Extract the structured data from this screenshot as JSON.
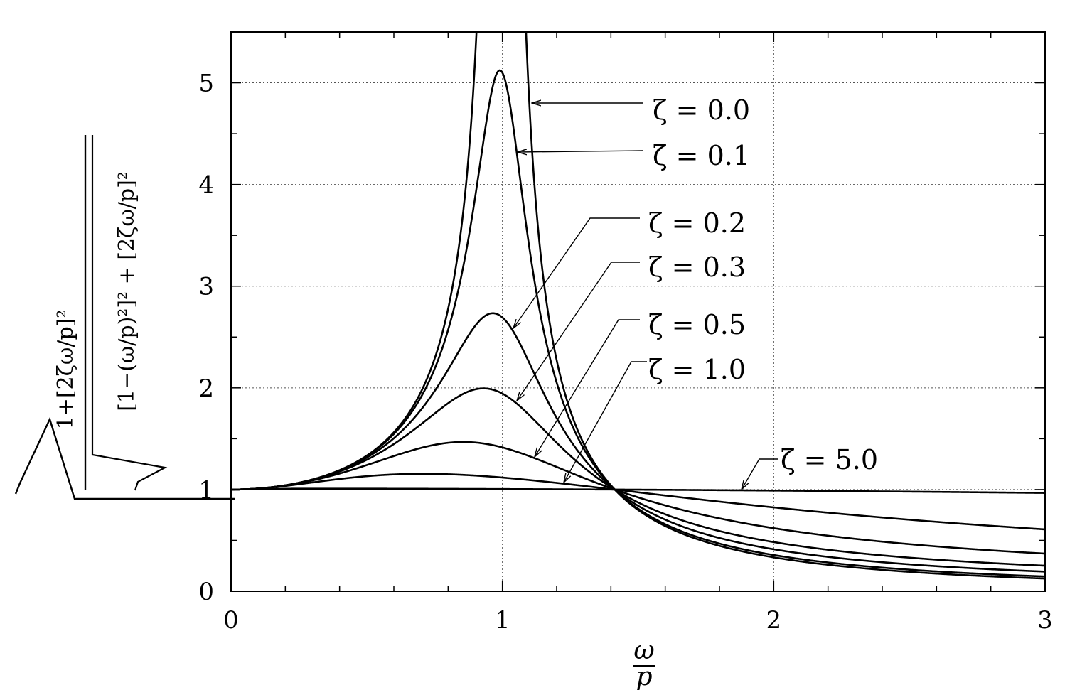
{
  "chart_data": {
    "type": "line",
    "title": "",
    "xlabel": "ω/p",
    "ylabel": "sqrt( (1 + [2ζ ω/p]^2) / ([1 − (ω/p)^2]^2 + [2ζ ω/p]^2) )",
    "xlabel_parts": {
      "numerator": "ω",
      "denominator": "p"
    },
    "xlim": [
      0,
      3
    ],
    "ylim": [
      0,
      5.5
    ],
    "x_ticks": [
      0,
      1,
      2,
      3
    ],
    "y_ticks": [
      0,
      1,
      2,
      3,
      4,
      5
    ],
    "x_tick_labels": [
      "0",
      "1",
      "2",
      "3"
    ],
    "y_tick_labels": [
      "0",
      "1",
      "2",
      "3",
      "4",
      "5"
    ],
    "grid": true,
    "x": [
      0,
      0.25,
      0.5,
      0.75,
      0.9,
      1.0,
      1.25,
      1.414,
      1.75,
      2.0,
      2.5,
      3.0
    ],
    "series": [
      {
        "name": "ζ = 0.0",
        "zeta": 0.0,
        "values": [
          1.0,
          1.067,
          1.333,
          2.286,
          5.263,
          null,
          1.778,
          1.0,
          0.485,
          0.333,
          0.19,
          0.125
        ]
      },
      {
        "name": "ζ = 0.1",
        "zeta": 0.1,
        "values": [
          1.0,
          1.066,
          1.317,
          2.125,
          3.77,
          5.099,
          1.766,
          1.0,
          0.496,
          0.355,
          0.225,
          0.172
        ]
      },
      {
        "name": "ζ = 0.2",
        "zeta": 0.2,
        "values": [
          1.0,
          1.063,
          1.277,
          1.819,
          2.405,
          2.693,
          1.671,
          1.0,
          0.524,
          0.408,
          0.296,
          0.249
        ]
      },
      {
        "name": "ζ = 0.3",
        "zeta": 0.3,
        "values": [
          1.0,
          1.059,
          1.228,
          1.553,
          1.824,
          1.944,
          1.567,
          1.0,
          0.562,
          0.463,
          0.368,
          0.328
        ]
      },
      {
        "name": "ζ = 0.5",
        "zeta": 0.5,
        "values": [
          1.0,
          1.049,
          1.151,
          1.28,
          1.36,
          1.414,
          1.333,
          1.0,
          0.638,
          0.555,
          0.478,
          0.445
        ]
      },
      {
        "name": "ζ = 1.0",
        "zeta": 1.0,
        "values": [
          1.0,
          1.028,
          1.063,
          1.096,
          1.1,
          1.118,
          1.091,
          1.0,
          0.8,
          0.74,
          0.69,
          0.65
        ]
      },
      {
        "name": "ζ = 5.0",
        "zeta": 5.0,
        "values": [
          1.0,
          1.001,
          1.003,
          1.004,
          1.005,
          1.005,
          1.003,
          1.0,
          0.99,
          0.99,
          0.985,
          0.983
        ]
      }
    ],
    "annotations": [
      {
        "zeta": 0.0,
        "text": "ζ = 0.0"
      },
      {
        "zeta": 0.1,
        "text": "ζ = 0.1"
      },
      {
        "zeta": 0.2,
        "text": "ζ = 0.2"
      },
      {
        "zeta": 0.3,
        "text": "ζ = 0.3"
      },
      {
        "zeta": 0.5,
        "text": "ζ = 0.5"
      },
      {
        "zeta": 1.0,
        "text": "ζ = 1.0"
      },
      {
        "zeta": 5.0,
        "text": "ζ = 5.0"
      }
    ]
  }
}
